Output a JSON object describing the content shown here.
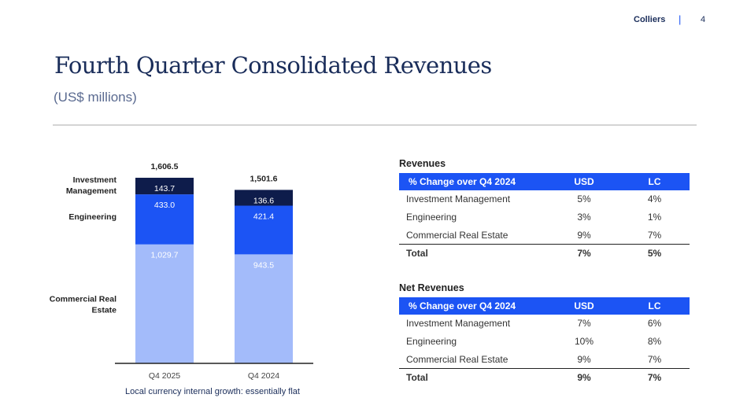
{
  "header": {
    "brand": "Colliers",
    "separator": "|",
    "page_number": "4"
  },
  "title": "Fourth Quarter Consolidated Revenues",
  "subtitle": "(US$ millions)",
  "chart_data": {
    "type": "bar",
    "stacked": true,
    "categories": [
      "Q4 2025",
      "Q4 2024"
    ],
    "totals": [
      "1,606.5",
      "1,501.6"
    ],
    "series": [
      {
        "name": "Commercial Real Estate",
        "legend_lines": [
          "Commercial Real",
          "Estate"
        ],
        "values": [
          1029.7,
          943.5
        ],
        "labels": [
          "1,029.7",
          "943.5"
        ],
        "color": "#a3bbfa",
        "label_color": "#ffffff"
      },
      {
        "name": "Engineering",
        "legend_lines": [
          "Engineering"
        ],
        "values": [
          433.0,
          421.4
        ],
        "labels": [
          "433.0",
          "421.4"
        ],
        "color": "#1c54f4",
        "label_color": "#ffffff"
      },
      {
        "name": "Investment Management",
        "legend_lines": [
          "Investment",
          "Management"
        ],
        "values": [
          143.7,
          136.6
        ],
        "labels": [
          "143.7",
          "136.6"
        ],
        "color": "#0e1c4b",
        "label_color": "#ffffff"
      }
    ],
    "ylim": [
      0,
      1606.5
    ],
    "footnote": "Local currency internal growth: essentially flat"
  },
  "revenues": {
    "title": "Revenues",
    "headers": [
      "% Change over Q4 2024",
      "USD",
      "LC"
    ],
    "rows": [
      [
        "Investment Management",
        "5%",
        "4%"
      ],
      [
        "Engineering",
        "3%",
        "1%"
      ],
      [
        "Commercial Real Estate",
        "9%",
        "7%"
      ]
    ],
    "total": [
      "Total",
      "7%",
      "5%"
    ]
  },
  "net_revenues": {
    "title": "Net Revenues",
    "headers": [
      "% Change over Q4 2024",
      "USD",
      "LC"
    ],
    "rows": [
      [
        "Investment Management",
        "7%",
        "6%"
      ],
      [
        "Engineering",
        "10%",
        "8%"
      ],
      [
        "Commercial Real Estate",
        "9%",
        "7%"
      ]
    ],
    "total": [
      "Total",
      "9%",
      "7%"
    ]
  }
}
